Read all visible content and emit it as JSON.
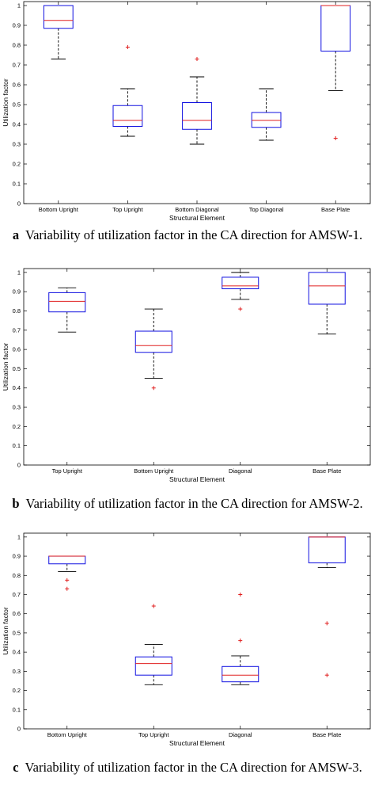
{
  "colors": {
    "box": "#1010e0",
    "median": "#e02020",
    "whisker": "#000000",
    "outlier": "#e02020"
  },
  "chart_data": [
    {
      "type": "boxplot",
      "xlabel": "Structural Element",
      "ylabel": "Utilization factor",
      "ylim": [
        0,
        1.02
      ],
      "yticks": [
        "0",
        "0.1",
        "0.2",
        "0.3",
        "0.4",
        "0.5",
        "0.6",
        "0.7",
        "0.8",
        "0.9",
        "1"
      ],
      "categories": [
        "Bottom Upright",
        "Top Upright",
        "Bottom Diagonal",
        "Top Diagonal",
        "Base Plate"
      ],
      "boxes": [
        {
          "min": 0.73,
          "q1": 0.885,
          "median": 0.925,
          "q3": 1.0,
          "max": 1.0,
          "outliers": []
        },
        {
          "min": 0.34,
          "q1": 0.39,
          "median": 0.42,
          "q3": 0.495,
          "max": 0.58,
          "outliers": [
            0.79
          ]
        },
        {
          "min": 0.3,
          "q1": 0.375,
          "median": 0.42,
          "q3": 0.51,
          "max": 0.64,
          "outliers": [
            0.73
          ]
        },
        {
          "min": 0.32,
          "q1": 0.385,
          "median": 0.42,
          "q3": 0.46,
          "max": 0.58,
          "outliers": []
        },
        {
          "min": 0.57,
          "q1": 0.77,
          "median": 1.0,
          "q3": 1.0,
          "max": 1.0,
          "outliers": [
            0.33
          ]
        }
      ],
      "caption_letter": "a",
      "caption_text": "Variability of utilization factor in the CA direction for AMSW-1."
    },
    {
      "type": "boxplot",
      "xlabel": "Structural Element",
      "ylabel": "Utilization factor",
      "ylim": [
        0,
        1.02
      ],
      "yticks": [
        "0",
        "0.1",
        "0.2",
        "0.3",
        "0.4",
        "0.5",
        "0.6",
        "0.7",
        "0.8",
        "0.9",
        "1"
      ],
      "categories": [
        "Top Upright",
        "Bottom Upright",
        "Diagonal",
        "Base Plate"
      ],
      "boxes": [
        {
          "min": 0.69,
          "q1": 0.795,
          "median": 0.85,
          "q3": 0.895,
          "max": 0.92,
          "outliers": []
        },
        {
          "min": 0.45,
          "q1": 0.585,
          "median": 0.62,
          "q3": 0.695,
          "max": 0.81,
          "outliers": [
            0.4
          ]
        },
        {
          "min": 0.86,
          "q1": 0.915,
          "median": 0.93,
          "q3": 0.975,
          "max": 1.0,
          "outliers": [
            0.81
          ]
        },
        {
          "min": 0.68,
          "q1": 0.835,
          "median": 0.93,
          "q3": 1.0,
          "max": 1.0,
          "outliers": []
        }
      ],
      "caption_letter": "b",
      "caption_text": "Variability of utilization factor in the CA direction for AMSW-2."
    },
    {
      "type": "boxplot",
      "xlabel": "Structural Element",
      "ylabel": "Utilization factor",
      "ylim": [
        0,
        1.02
      ],
      "yticks": [
        "0",
        "0.1",
        "0.2",
        "0.3",
        "0.4",
        "0.5",
        "0.6",
        "0.7",
        "0.8",
        "0.9",
        "1"
      ],
      "categories": [
        "Bottom Upright",
        "Top Upright",
        "Diagonal",
        "Base Plate"
      ],
      "boxes": [
        {
          "min": 0.82,
          "q1": 0.86,
          "median": 0.9,
          "q3": 0.9,
          "max": 0.9,
          "outliers": [
            0.775,
            0.73
          ]
        },
        {
          "min": 0.23,
          "q1": 0.28,
          "median": 0.34,
          "q3": 0.375,
          "max": 0.44,
          "outliers": [
            0.64
          ]
        },
        {
          "min": 0.23,
          "q1": 0.245,
          "median": 0.28,
          "q3": 0.325,
          "max": 0.38,
          "outliers": [
            0.7,
            0.46
          ]
        },
        {
          "min": 0.84,
          "q1": 0.865,
          "median": 1.0,
          "q3": 1.0,
          "max": 1.0,
          "outliers": [
            0.55,
            0.28
          ]
        }
      ],
      "caption_letter": "c",
      "caption_text": "Variability of utilization factor in the CA direction for AMSW-3."
    }
  ]
}
